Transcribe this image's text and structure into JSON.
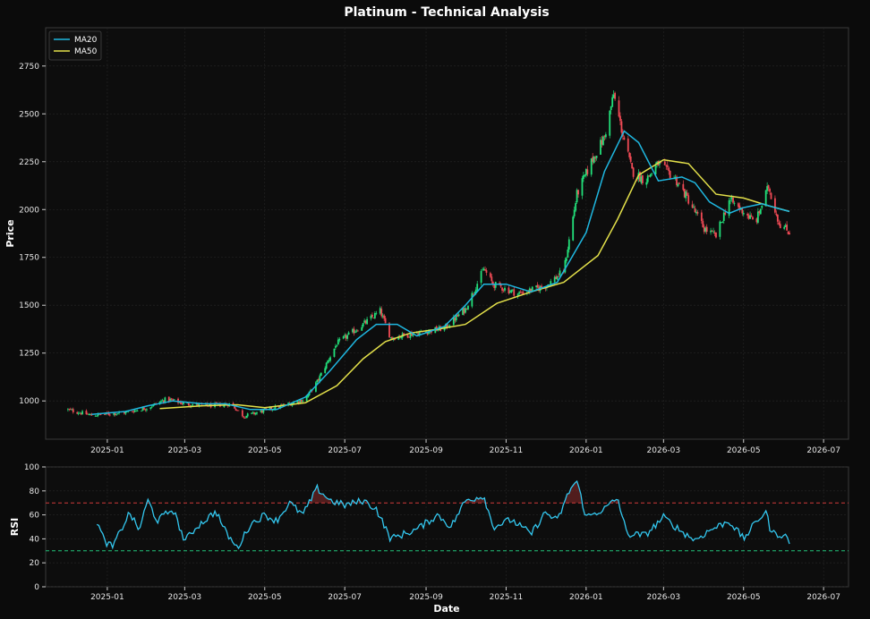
{
  "chart_data": {
    "type": "line",
    "title": "Platinum - Technical Analysis",
    "xlabel": "Date",
    "x_ticks": [
      "2025-01",
      "2025-03",
      "2025-05",
      "2025-07",
      "2025-09",
      "2025-11",
      "2026-01",
      "2026-03",
      "2026-05",
      "2026-07"
    ],
    "colors": {
      "background": "#0b0b0b",
      "panel": "#0d0d0d",
      "grid": "#262626",
      "ma20": "#1fb7e0",
      "ma50": "#e3e04a",
      "up": "#22e07a",
      "down": "#f04a55",
      "rsi": "#33c8f0",
      "overbought": "#d13b3b",
      "oversold": "#22c47a"
    },
    "price_panel": {
      "ylabel": "Price",
      "ylim": [
        800,
        2950
      ],
      "y_ticks": [
        1000,
        1250,
        1500,
        1750,
        2000,
        2250,
        2500,
        2750
      ],
      "legend": {
        "placement": "top-left",
        "entries": [
          "MA20",
          "MA50"
        ]
      },
      "close_anchors": [
        [
          "2024-12-01",
          955
        ],
        [
          "2024-12-20",
          925
        ],
        [
          "2025-01-15",
          940
        ],
        [
          "2025-02-01",
          965
        ],
        [
          "2025-02-15",
          1010
        ],
        [
          "2025-03-01",
          985
        ],
        [
          "2025-03-20",
          975
        ],
        [
          "2025-04-05",
          985
        ],
        [
          "2025-04-15",
          920
        ],
        [
          "2025-05-01",
          950
        ],
        [
          "2025-05-20",
          985
        ],
        [
          "2025-06-01",
          1010
        ],
        [
          "2025-06-10",
          1100
        ],
        [
          "2025-06-25",
          1300
        ],
        [
          "2025-07-15",
          1400
        ],
        [
          "2025-07-28",
          1470
        ],
        [
          "2025-08-05",
          1330
        ],
        [
          "2025-08-25",
          1355
        ],
        [
          "2025-09-15",
          1380
        ],
        [
          "2025-10-01",
          1480
        ],
        [
          "2025-10-15",
          1690
        ],
        [
          "2025-10-22",
          1610
        ],
        [
          "2025-11-10",
          1560
        ],
        [
          "2025-12-01",
          1600
        ],
        [
          "2025-12-15",
          1680
        ],
        [
          "2025-12-25",
          2080
        ],
        [
          "2026-01-05",
          2250
        ],
        [
          "2026-01-15",
          2380
        ],
        [
          "2026-01-22",
          2600
        ],
        [
          "2026-01-28",
          2420
        ],
        [
          "2026-02-05",
          2200
        ],
        [
          "2026-02-15",
          2150
        ],
        [
          "2026-02-25",
          2240
        ],
        [
          "2026-03-10",
          2160
        ],
        [
          "2026-03-20",
          2050
        ],
        [
          "2026-04-01",
          1900
        ],
        [
          "2026-04-10",
          1860
        ],
        [
          "2026-04-20",
          2050
        ],
        [
          "2026-05-01",
          1990
        ],
        [
          "2026-05-10",
          1930
        ],
        [
          "2026-05-20",
          2120
        ],
        [
          "2026-05-28",
          1930
        ],
        [
          "2026-06-05",
          1880
        ]
      ],
      "ma20": [
        [
          "2024-12-20",
          930
        ],
        [
          "2025-01-15",
          945
        ],
        [
          "2025-02-01",
          975
        ],
        [
          "2025-02-20",
          1000
        ],
        [
          "2025-03-15",
          985
        ],
        [
          "2025-04-01",
          985
        ],
        [
          "2025-04-20",
          955
        ],
        [
          "2025-05-10",
          955
        ],
        [
          "2025-06-01",
          1020
        ],
        [
          "2025-06-20",
          1160
        ],
        [
          "2025-07-10",
          1320
        ],
        [
          "2025-07-25",
          1400
        ],
        [
          "2025-08-10",
          1400
        ],
        [
          "2025-08-25",
          1340
        ],
        [
          "2025-09-15",
          1390
        ],
        [
          "2025-10-01",
          1500
        ],
        [
          "2025-10-15",
          1610
        ],
        [
          "2025-11-01",
          1610
        ],
        [
          "2025-11-20",
          1570
        ],
        [
          "2025-12-10",
          1620
        ],
        [
          "2026-01-01",
          1880
        ],
        [
          "2026-01-15",
          2200
        ],
        [
          "2026-01-30",
          2410
        ],
        [
          "2026-02-10",
          2350
        ],
        [
          "2026-02-25",
          2150
        ],
        [
          "2026-03-15",
          2170
        ],
        [
          "2026-03-25",
          2140
        ],
        [
          "2026-04-05",
          2040
        ],
        [
          "2026-04-20",
          1980
        ],
        [
          "2026-05-01",
          2010
        ],
        [
          "2026-05-15",
          2030
        ],
        [
          "2026-05-25",
          2010
        ],
        [
          "2026-06-05",
          1990
        ]
      ],
      "ma50": [
        [
          "2025-02-10",
          960
        ],
        [
          "2025-03-15",
          975
        ],
        [
          "2025-04-10",
          980
        ],
        [
          "2025-05-01",
          965
        ],
        [
          "2025-06-01",
          990
        ],
        [
          "2025-06-25",
          1080
        ],
        [
          "2025-07-15",
          1220
        ],
        [
          "2025-08-01",
          1310
        ],
        [
          "2025-08-20",
          1355
        ],
        [
          "2025-09-10",
          1375
        ],
        [
          "2025-10-01",
          1400
        ],
        [
          "2025-10-25",
          1510
        ],
        [
          "2025-11-20",
          1570
        ],
        [
          "2025-12-15",
          1620
        ],
        [
          "2026-01-10",
          1760
        ],
        [
          "2026-01-25",
          1950
        ],
        [
          "2026-02-10",
          2180
        ],
        [
          "2026-03-01",
          2260
        ],
        [
          "2026-03-20",
          2240
        ],
        [
          "2026-04-10",
          2080
        ],
        [
          "2026-05-01",
          2060
        ],
        [
          "2026-05-20",
          2020
        ],
        [
          "2026-06-05",
          1990
        ]
      ]
    },
    "rsi_panel": {
      "ylabel": "RSI",
      "ylim": [
        0,
        100
      ],
      "y_ticks": [
        0,
        20,
        40,
        60,
        80,
        100
      ],
      "overbought": 70,
      "oversold": 30,
      "rsi": [
        [
          "2024-12-24",
          54
        ],
        [
          "2024-12-30",
          38
        ],
        [
          "2025-01-05",
          33
        ],
        [
          "2025-01-18",
          62
        ],
        [
          "2025-01-25",
          47
        ],
        [
          "2025-02-01",
          72
        ],
        [
          "2025-02-08",
          55
        ],
        [
          "2025-02-20",
          65
        ],
        [
          "2025-03-01",
          38
        ],
        [
          "2025-03-10",
          50
        ],
        [
          "2025-03-25",
          63
        ],
        [
          "2025-04-01",
          46
        ],
        [
          "2025-04-10",
          32
        ],
        [
          "2025-04-20",
          52
        ],
        [
          "2025-05-01",
          60
        ],
        [
          "2025-05-10",
          55
        ],
        [
          "2025-05-20",
          70
        ],
        [
          "2025-05-30",
          60
        ],
        [
          "2025-06-10",
          82
        ],
        [
          "2025-06-20",
          72
        ],
        [
          "2025-07-01",
          68
        ],
        [
          "2025-07-15",
          72
        ],
        [
          "2025-07-25",
          65
        ],
        [
          "2025-08-05",
          40
        ],
        [
          "2025-08-25",
          48
        ],
        [
          "2025-09-10",
          60
        ],
        [
          "2025-09-20",
          50
        ],
        [
          "2025-10-01",
          72
        ],
        [
          "2025-10-15",
          76
        ],
        [
          "2025-10-22",
          50
        ],
        [
          "2025-11-05",
          56
        ],
        [
          "2025-11-20",
          44
        ],
        [
          "2025-12-01",
          62
        ],
        [
          "2025-12-10",
          55
        ],
        [
          "2025-12-20",
          82
        ],
        [
          "2025-12-25",
          88
        ],
        [
          "2026-01-01",
          58
        ],
        [
          "2026-01-15",
          65
        ],
        [
          "2026-01-25",
          74
        ],
        [
          "2026-02-01",
          44
        ],
        [
          "2026-02-15",
          43
        ],
        [
          "2026-03-01",
          58
        ],
        [
          "2026-03-15",
          46
        ],
        [
          "2026-03-25",
          39
        ],
        [
          "2026-04-05",
          47
        ],
        [
          "2026-04-20",
          55
        ],
        [
          "2026-05-01",
          40
        ],
        [
          "2026-05-12",
          56
        ],
        [
          "2026-05-18",
          63
        ],
        [
          "2026-05-22",
          45
        ],
        [
          "2026-06-01",
          43
        ],
        [
          "2026-06-05",
          38
        ]
      ]
    }
  }
}
